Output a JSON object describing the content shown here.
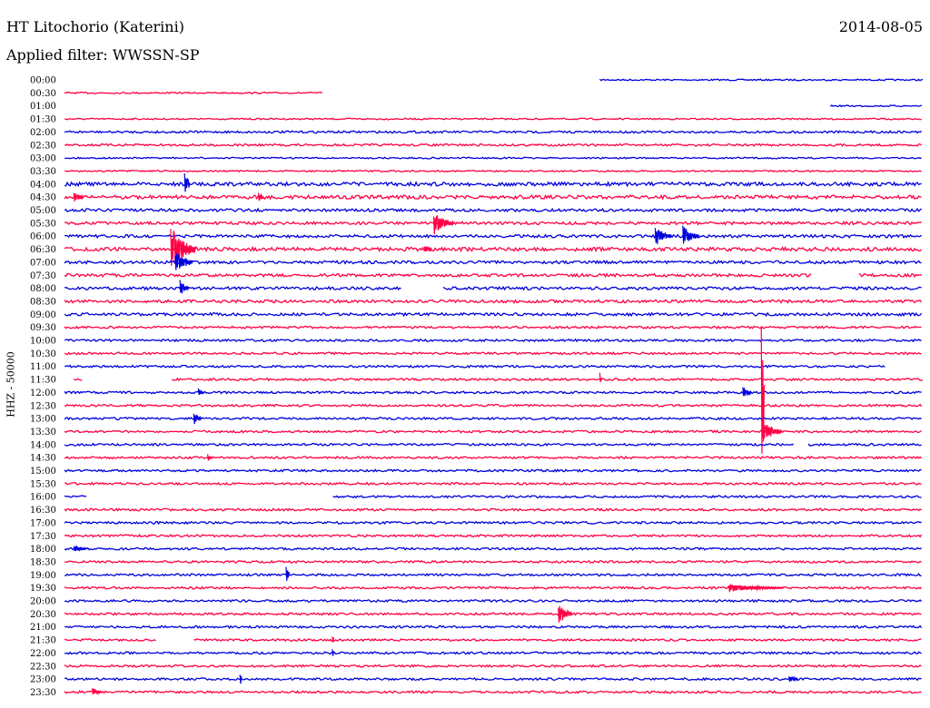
{
  "header": {
    "station": "HT Litochorio (Katerini)",
    "date": "2014-08-05",
    "filter": "Applied filter: WWSSN-SP"
  },
  "chart_data": {
    "type": "line",
    "ylabel": "HHZ - 50000",
    "colors": {
      "a": "#ff0044",
      "b": "#0000dd"
    },
    "rows": [
      {
        "label": "00:00",
        "color": "b",
        "amp": 1,
        "start": 0.65,
        "end": 1.0,
        "gaps": [],
        "events": []
      },
      {
        "label": "00:30",
        "color": "a",
        "amp": 1,
        "start": 0.07,
        "end": 0.35,
        "gaps": [],
        "events": []
      },
      {
        "label": "01:00",
        "color": "b",
        "amp": 1,
        "start": 0.9,
        "end": 1.0,
        "gaps": [],
        "events": []
      },
      {
        "label": "01:30",
        "color": "a",
        "amp": 1,
        "start": 0.07,
        "end": 1.0,
        "gaps": [],
        "events": []
      },
      {
        "label": "02:00",
        "color": "b",
        "amp": 1.5,
        "start": 0.07,
        "end": 1.0,
        "gaps": [],
        "events": []
      },
      {
        "label": "02:30",
        "color": "a",
        "amp": 1.5,
        "start": 0.07,
        "end": 1.0,
        "gaps": [],
        "events": []
      },
      {
        "label": "03:00",
        "color": "b",
        "amp": 1,
        "start": 0.07,
        "end": 1.0,
        "gaps": [],
        "events": []
      },
      {
        "label": "03:30",
        "color": "a",
        "amp": 1,
        "start": 0.07,
        "end": 1.0,
        "gaps": [],
        "events": []
      },
      {
        "label": "04:00",
        "color": "b",
        "amp": 2.5,
        "start": 0.07,
        "end": 1.0,
        "gaps": [],
        "events": [
          [
            0.2,
            14,
            6
          ]
        ]
      },
      {
        "label": "04:30",
        "color": "a",
        "amp": 2.5,
        "start": 0.07,
        "end": 1.0,
        "gaps": [],
        "events": [
          [
            0.08,
            6,
            12
          ],
          [
            0.28,
            6,
            6
          ]
        ]
      },
      {
        "label": "05:00",
        "color": "b",
        "amp": 2,
        "start": 0.07,
        "end": 1.0,
        "gaps": [],
        "events": []
      },
      {
        "label": "05:30",
        "color": "a",
        "amp": 2,
        "start": 0.07,
        "end": 1.0,
        "gaps": [],
        "events": [
          [
            0.47,
            14,
            22
          ]
        ]
      },
      {
        "label": "06:00",
        "color": "b",
        "amp": 2,
        "start": 0.07,
        "end": 1.0,
        "gaps": [],
        "events": [
          [
            0.71,
            12,
            18
          ],
          [
            0.74,
            12,
            18
          ]
        ]
      },
      {
        "label": "06:30",
        "color": "a",
        "amp": 2.5,
        "start": 0.07,
        "end": 1.0,
        "gaps": [],
        "events": [
          [
            0.185,
            26,
            28
          ],
          [
            0.46,
            5,
            8
          ]
        ]
      },
      {
        "label": "07:00",
        "color": "b",
        "amp": 2,
        "start": 0.07,
        "end": 1.0,
        "gaps": [],
        "events": [
          [
            0.19,
            14,
            20
          ]
        ]
      },
      {
        "label": "07:30",
        "color": "a",
        "amp": 2,
        "start": 0.07,
        "end": 1.0,
        "gaps": [
          [
            0.88,
            0.93
          ]
        ],
        "events": []
      },
      {
        "label": "08:00",
        "color": "b",
        "amp": 2,
        "start": 0.07,
        "end": 1.0,
        "gaps": [
          [
            0.435,
            0.48
          ]
        ],
        "events": [
          [
            0.195,
            10,
            10
          ]
        ]
      },
      {
        "label": "08:30",
        "color": "a",
        "amp": 2,
        "start": 0.07,
        "end": 1.0,
        "gaps": [],
        "events": []
      },
      {
        "label": "09:00",
        "color": "b",
        "amp": 2,
        "start": 0.07,
        "end": 1.0,
        "gaps": [],
        "events": []
      },
      {
        "label": "09:30",
        "color": "a",
        "amp": 1.5,
        "start": 0.07,
        "end": 1.0,
        "gaps": [],
        "events": []
      },
      {
        "label": "10:00",
        "color": "b",
        "amp": 1.5,
        "start": 0.07,
        "end": 1.0,
        "gaps": [],
        "events": []
      },
      {
        "label": "10:30",
        "color": "a",
        "amp": 1.5,
        "start": 0.07,
        "end": 1.0,
        "gaps": [],
        "events": []
      },
      {
        "label": "11:00",
        "color": "b",
        "amp": 1.5,
        "start": 0.07,
        "end": 0.96,
        "gaps": [],
        "events": []
      },
      {
        "label": "11:30",
        "color": "a",
        "amp": 1.5,
        "start": 0.08,
        "end": 1.0,
        "gaps": [
          [
            0.09,
            0.185
          ]
        ],
        "events": [
          [
            0.65,
            8,
            2
          ]
        ]
      },
      {
        "label": "12:00",
        "color": "b",
        "amp": 1.5,
        "start": 0.07,
        "end": 1.0,
        "gaps": [],
        "events": [
          [
            0.215,
            5,
            6
          ],
          [
            0.805,
            8,
            10
          ]
        ]
      },
      {
        "label": "12:30",
        "color": "a",
        "amp": 1.5,
        "start": 0.07,
        "end": 1.0,
        "gaps": [],
        "events": [
          [
            0.825,
            100,
            4
          ]
        ]
      },
      {
        "label": "13:00",
        "color": "b",
        "amp": 1.5,
        "start": 0.07,
        "end": 1.0,
        "gaps": [],
        "events": [
          [
            0.21,
            8,
            8
          ]
        ]
      },
      {
        "label": "13:30",
        "color": "a",
        "amp": 1.5,
        "start": 0.07,
        "end": 1.0,
        "gaps": [],
        "events": [
          [
            0.826,
            14,
            22
          ]
        ]
      },
      {
        "label": "14:00",
        "color": "b",
        "amp": 1.5,
        "start": 0.07,
        "end": 1.0,
        "gaps": [
          [
            0.86,
            0.875
          ]
        ],
        "events": []
      },
      {
        "label": "14:30",
        "color": "a",
        "amp": 1.5,
        "start": 0.07,
        "end": 1.0,
        "gaps": [],
        "events": [
          [
            0.225,
            4,
            6
          ]
        ]
      },
      {
        "label": "15:00",
        "color": "b",
        "amp": 1.5,
        "start": 0.07,
        "end": 1.0,
        "gaps": [],
        "events": []
      },
      {
        "label": "15:30",
        "color": "a",
        "amp": 1.5,
        "start": 0.07,
        "end": 1.0,
        "gaps": [],
        "events": []
      },
      {
        "label": "16:00",
        "color": "b",
        "amp": 1.5,
        "start": 0.07,
        "end": 1.0,
        "gaps": [
          [
            0.095,
            0.36
          ]
        ],
        "events": []
      },
      {
        "label": "16:30",
        "color": "a",
        "amp": 1.5,
        "start": 0.07,
        "end": 1.0,
        "gaps": [],
        "events": []
      },
      {
        "label": "17:00",
        "color": "b",
        "amp": 1.5,
        "start": 0.07,
        "end": 1.0,
        "gaps": [],
        "events": []
      },
      {
        "label": "17:30",
        "color": "a",
        "amp": 1.5,
        "start": 0.07,
        "end": 1.0,
        "gaps": [],
        "events": []
      },
      {
        "label": "18:00",
        "color": "b",
        "amp": 1.5,
        "start": 0.07,
        "end": 1.0,
        "gaps": [],
        "events": [
          [
            0.08,
            4,
            14
          ]
        ]
      },
      {
        "label": "18:30",
        "color": "a",
        "amp": 1.5,
        "start": 0.07,
        "end": 1.0,
        "gaps": [],
        "events": []
      },
      {
        "label": "19:00",
        "color": "b",
        "amp": 1.5,
        "start": 0.07,
        "end": 1.0,
        "gaps": [],
        "events": [
          [
            0.31,
            10,
            4
          ]
        ]
      },
      {
        "label": "19:30",
        "color": "a",
        "amp": 1.5,
        "start": 0.07,
        "end": 1.0,
        "gaps": [],
        "events": [
          [
            0.79,
            5,
            60
          ]
        ]
      },
      {
        "label": "20:00",
        "color": "b",
        "amp": 1.5,
        "start": 0.07,
        "end": 1.0,
        "gaps": [],
        "events": []
      },
      {
        "label": "20:30",
        "color": "a",
        "amp": 1.5,
        "start": 0.07,
        "end": 1.0,
        "gaps": [],
        "events": [
          [
            0.605,
            13,
            16
          ]
        ]
      },
      {
        "label": "21:00",
        "color": "b",
        "amp": 1.5,
        "start": 0.07,
        "end": 1.0,
        "gaps": [],
        "events": []
      },
      {
        "label": "21:30",
        "color": "a",
        "amp": 1.5,
        "start": 0.07,
        "end": 1.0,
        "gaps": [
          [
            0.17,
            0.21
          ]
        ],
        "events": [
          [
            0.36,
            7,
            2
          ]
        ]
      },
      {
        "label": "22:00",
        "color": "b",
        "amp": 1.5,
        "start": 0.07,
        "end": 1.0,
        "gaps": [],
        "events": [
          [
            0.36,
            7,
            2
          ]
        ]
      },
      {
        "label": "22:30",
        "color": "a",
        "amp": 1.5,
        "start": 0.07,
        "end": 1.0,
        "gaps": [],
        "events": []
      },
      {
        "label": "23:00",
        "color": "b",
        "amp": 1.5,
        "start": 0.07,
        "end": 1.0,
        "gaps": [],
        "events": [
          [
            0.26,
            8,
            2
          ],
          [
            0.855,
            5,
            10
          ]
        ]
      },
      {
        "label": "23:30",
        "color": "a",
        "amp": 1.5,
        "start": 0.07,
        "end": 1.0,
        "gaps": [],
        "events": [
          [
            0.1,
            5,
            12
          ]
        ]
      }
    ]
  }
}
